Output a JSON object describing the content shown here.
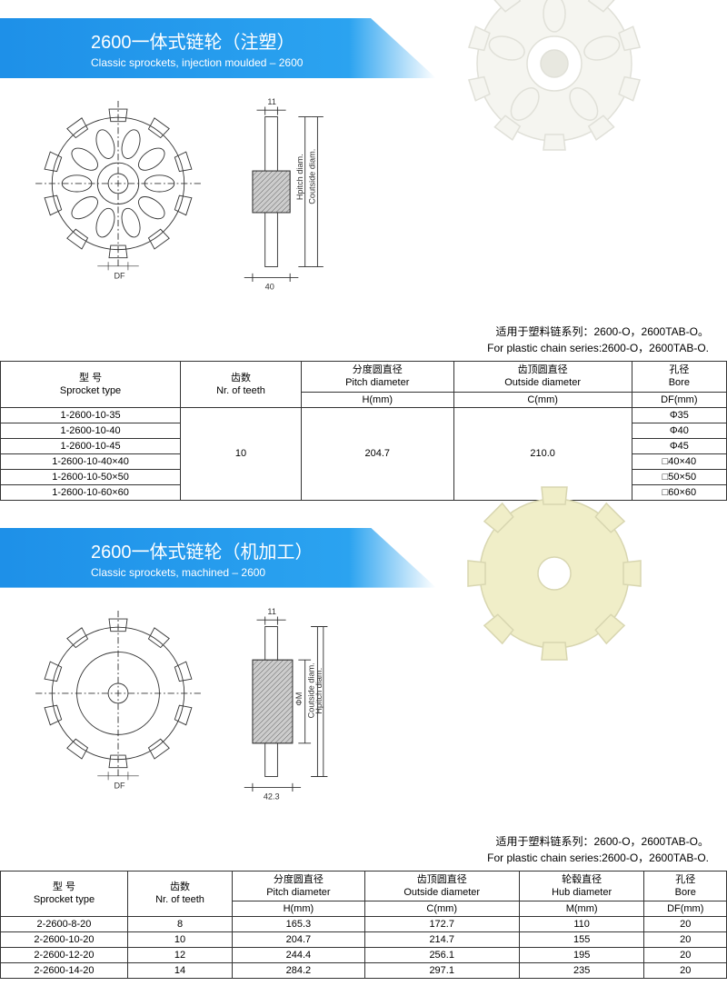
{
  "section1": {
    "title_cn": "2600一体式链轮（注塑）",
    "title_en": "Classic sprockets, injection moulded – 2600",
    "note_cn": "适用于塑料链系列：2600-O，2600TAB-O。",
    "note_en": "For plastic chain series:2600-O，2600TAB-O.",
    "dim_top": "11",
    "dim_bottom": "40",
    "dim_df": "DF",
    "dim_h": "H",
    "dim_c": "C",
    "headers": {
      "c1_cn": "型 号",
      "c1_en": "Sprocket type",
      "c2_cn": "齿数",
      "c2_en": "Nr. of teeth",
      "c3_cn": "分度圆直径",
      "c3_en": "Pitch diameter",
      "c3_unit": "H(mm)",
      "c4_cn": "齿顶圆直径",
      "c4_en": "Outside diameter",
      "c4_unit": "C(mm)",
      "c5_cn": "孔径",
      "c5_en": "Bore",
      "c5_unit": "DF(mm)"
    },
    "teeth": "10",
    "pitch": "204.7",
    "outside": "210.0",
    "rows": [
      {
        "type": "1-2600-10-35",
        "bore": "Φ35"
      },
      {
        "type": "1-2600-10-40",
        "bore": "Φ40"
      },
      {
        "type": "1-2600-10-45",
        "bore": "Φ45"
      },
      {
        "type": "1-2600-10-40×40",
        "bore": "□40×40"
      },
      {
        "type": "1-2600-10-50×50",
        "bore": "□50×50"
      },
      {
        "type": "1-2600-10-60×60",
        "bore": "□60×60"
      }
    ]
  },
  "section2": {
    "title_cn": "2600一体式链轮（机加工）",
    "title_en": "Classic sprockets, machined – 2600",
    "note_cn": "适用于塑料链系列：2600-O，2600TAB-O。",
    "note_en": "For plastic chain series:2600-O，2600TAB-O.",
    "dim_top": "11",
    "dim_bottom": "42.3",
    "dim_df": "DF",
    "headers": {
      "c1_cn": "型 号",
      "c1_en": "Sprocket type",
      "c2_cn": "齿数",
      "c2_en": "Nr. of teeth",
      "c3_cn": "分度圆直径",
      "c3_en": "Pitch diameter",
      "c3_unit": "H(mm)",
      "c4_cn": "齿顶圆直径",
      "c4_en": "Outside diameter",
      "c4_unit": "C(mm)",
      "c5_cn": "轮毂直径",
      "c5_en": "Hub diameter",
      "c5_unit": "M(mm)",
      "c6_cn": "孔径",
      "c6_en": "Bore",
      "c6_unit": "DF(mm)"
    },
    "rows": [
      {
        "type": "2-2600-8-20",
        "teeth": "8",
        "pitch": "165.3",
        "outside": "172.7",
        "hub": "110",
        "bore": "20"
      },
      {
        "type": "2-2600-10-20",
        "teeth": "10",
        "pitch": "204.7",
        "outside": "214.7",
        "hub": "155",
        "bore": "20"
      },
      {
        "type": "2-2600-12-20",
        "teeth": "12",
        "pitch": "244.4",
        "outside": "256.1",
        "hub": "195",
        "bore": "20"
      },
      {
        "type": "2-2600-14-20",
        "teeth": "14",
        "pitch": "284.2",
        "outside": "297.1",
        "hub": "235",
        "bore": "20"
      }
    ]
  },
  "colors": {
    "banner": "#1e90e8",
    "photo1": "#f5f5f0",
    "photo2": "#f0eec8",
    "line": "#333"
  }
}
